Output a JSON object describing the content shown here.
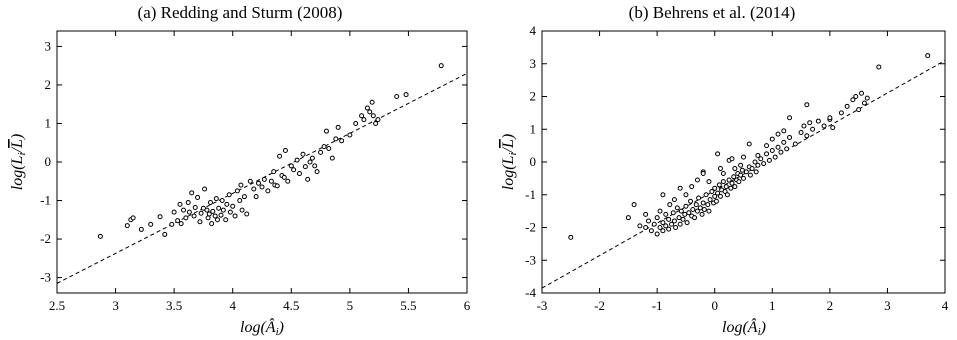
{
  "chart_data": [
    {
      "type": "scatter",
      "title": "(a) Redding and Sturm (2008)",
      "xlabel": "log(Â_i)",
      "ylabel": "log(L_i/L̄)",
      "xlim": [
        2.5,
        6
      ],
      "ylim": [
        -3.4,
        3.4
      ],
      "xticks": [
        "2.5",
        "3",
        "3.5",
        "4",
        "4.5",
        "5",
        "5.5",
        "6"
      ],
      "yticks": [
        "-3",
        "-2",
        "-1",
        "0",
        "1",
        "2",
        "3"
      ],
      "grid": false,
      "legend": "none",
      "fit_line": {
        "x": [
          2.5,
          6
        ],
        "y": [
          -3.15,
          2.3
        ]
      },
      "series": [
        {
          "points": [
            [
              2.87,
              -1.93
            ],
            [
              3.1,
              -1.65
            ],
            [
              3.13,
              -1.5
            ],
            [
              3.15,
              -1.45
            ],
            [
              3.22,
              -1.75
            ],
            [
              3.3,
              -1.62
            ],
            [
              3.38,
              -1.42
            ],
            [
              3.42,
              -1.88
            ],
            [
              3.48,
              -1.62
            ],
            [
              3.5,
              -1.3
            ],
            [
              3.53,
              -1.52
            ],
            [
              3.55,
              -1.1
            ],
            [
              3.56,
              -1.6
            ],
            [
              3.58,
              -1.25
            ],
            [
              3.6,
              -1.45
            ],
            [
              3.62,
              -1.05
            ],
            [
              3.63,
              -1.3
            ],
            [
              3.65,
              -0.8
            ],
            [
              3.67,
              -1.4
            ],
            [
              3.68,
              -1.18
            ],
            [
              3.7,
              -0.92
            ],
            [
              3.72,
              -1.55
            ],
            [
              3.73,
              -1.33
            ],
            [
              3.75,
              -1.2
            ],
            [
              3.76,
              -0.7
            ],
            [
              3.78,
              -1.25
            ],
            [
              3.79,
              -1.45
            ],
            [
              3.8,
              -1.35
            ],
            [
              3.81,
              -1.05
            ],
            [
              3.82,
              -1.6
            ],
            [
              3.83,
              -1.28
            ],
            [
              3.85,
              -1.4
            ],
            [
              3.86,
              -0.95
            ],
            [
              3.87,
              -1.5
            ],
            [
              3.88,
              -1.2
            ],
            [
              3.9,
              -1.38
            ],
            [
              3.91,
              -1.0
            ],
            [
              3.92,
              -1.25
            ],
            [
              3.94,
              -1.5
            ],
            [
              3.95,
              -1.1
            ],
            [
              3.97,
              -0.85
            ],
            [
              3.98,
              -1.3
            ],
            [
              4.0,
              -1.15
            ],
            [
              4.02,
              -1.4
            ],
            [
              4.04,
              -0.75
            ],
            [
              4.06,
              -1.0
            ],
            [
              4.07,
              -0.6
            ],
            [
              4.08,
              -1.25
            ],
            [
              4.1,
              -0.9
            ],
            [
              4.12,
              -1.35
            ],
            [
              4.15,
              -0.5
            ],
            [
              4.18,
              -0.7
            ],
            [
              4.2,
              -0.9
            ],
            [
              4.22,
              -0.55
            ],
            [
              4.25,
              -0.65
            ],
            [
              4.27,
              -0.45
            ],
            [
              4.3,
              -0.75
            ],
            [
              4.33,
              -0.5
            ],
            [
              4.35,
              -0.25
            ],
            [
              4.36,
              -0.6
            ],
            [
              4.38,
              -0.62
            ],
            [
              4.4,
              0.15
            ],
            [
              4.42,
              -0.35
            ],
            [
              4.44,
              -0.4
            ],
            [
              4.45,
              0.3
            ],
            [
              4.47,
              -0.5
            ],
            [
              4.5,
              -0.1
            ],
            [
              4.52,
              -0.2
            ],
            [
              4.55,
              0.05
            ],
            [
              4.57,
              -0.3
            ],
            [
              4.6,
              0.2
            ],
            [
              4.62,
              -0.12
            ],
            [
              4.64,
              -0.45
            ],
            [
              4.66,
              0.0
            ],
            [
              4.68,
              0.1
            ],
            [
              4.7,
              -0.1
            ],
            [
              4.72,
              -0.25
            ],
            [
              4.75,
              0.25
            ],
            [
              4.78,
              0.4
            ],
            [
              4.8,
              0.8
            ],
            [
              4.82,
              0.35
            ],
            [
              4.85,
              0.1
            ],
            [
              4.88,
              0.6
            ],
            [
              4.9,
              0.9
            ],
            [
              4.93,
              0.55
            ],
            [
              5.0,
              0.7
            ],
            [
              5.05,
              1.0
            ],
            [
              5.1,
              1.2
            ],
            [
              5.12,
              1.1
            ],
            [
              5.15,
              1.4
            ],
            [
              5.17,
              1.3
            ],
            [
              5.19,
              1.55
            ],
            [
              5.2,
              1.2
            ],
            [
              5.22,
              1.0
            ],
            [
              5.24,
              1.1
            ],
            [
              5.4,
              1.7
            ],
            [
              5.48,
              1.75
            ],
            [
              5.78,
              2.5
            ]
          ]
        }
      ]
    },
    {
      "type": "scatter",
      "title": "(b) Behrens et al. (2014)",
      "xlabel": "log(Â_i)",
      "ylabel": "log(L_i/L̄)",
      "xlim": [
        -3,
        4
      ],
      "ylim": [
        -4,
        4
      ],
      "xticks": [
        "-3",
        "-2",
        "-1",
        "0",
        "1",
        "2",
        "3",
        "4"
      ],
      "yticks": [
        "-4",
        "-3",
        "-2",
        "-1",
        "0",
        "1",
        "2",
        "3",
        "4"
      ],
      "grid": false,
      "legend": "none",
      "fit_line": {
        "x": [
          -3,
          4
        ],
        "y": [
          -3.85,
          3.1
        ]
      },
      "series": [
        {
          "points": [
            [
              -2.5,
              -2.3
            ],
            [
              -1.5,
              -1.7
            ],
            [
              -1.2,
              -2.0
            ],
            [
              -1.15,
              -1.8
            ],
            [
              -1.1,
              -2.1
            ],
            [
              -1.05,
              -1.9
            ],
            [
              -1.0,
              -2.2
            ],
            [
              -1.0,
              -1.7
            ],
            [
              -0.95,
              -2.0
            ],
            [
              -0.95,
              -1.5
            ],
            [
              -0.9,
              -1.85
            ],
            [
              -0.9,
              -2.1
            ],
            [
              -0.85,
              -1.6
            ],
            [
              -0.85,
              -1.95
            ],
            [
              -0.8,
              -1.75
            ],
            [
              -0.8,
              -2.05
            ],
            [
              -0.78,
              -1.3
            ],
            [
              -0.75,
              -1.9
            ],
            [
              -0.72,
              -1.55
            ],
            [
              -0.7,
              -1.8
            ],
            [
              -0.68,
              -2.0
            ],
            [
              -0.65,
              -1.4
            ],
            [
              -0.62,
              -1.7
            ],
            [
              -0.6,
              -1.9
            ],
            [
              -0.58,
              -1.5
            ],
            [
              -0.55,
              -1.75
            ],
            [
              -0.52,
              -1.6
            ],
            [
              -0.5,
              -1.35
            ],
            [
              -0.48,
              -1.85
            ],
            [
              -0.45,
              -1.55
            ],
            [
              -0.42,
              -1.2
            ],
            [
              -0.4,
              -1.65
            ],
            [
              -0.38,
              -1.45
            ],
            [
              -0.35,
              -1.7
            ],
            [
              -0.32,
              -1.3
            ],
            [
              -0.3,
              -1.5
            ],
            [
              -0.28,
              -1.1
            ],
            [
              -0.25,
              -1.4
            ],
            [
              -0.22,
              -1.6
            ],
            [
              -0.2,
              -1.25
            ],
            [
              -0.18,
              -1.45
            ],
            [
              -0.15,
              -1.0
            ],
            [
              -0.12,
              -1.3
            ],
            [
              -0.1,
              -1.5
            ],
            [
              -0.08,
              -1.15
            ],
            [
              -0.05,
              -0.9
            ],
            [
              -0.02,
              -1.25
            ],
            [
              0.0,
              -1.05
            ],
            [
              0.0,
              -0.8
            ],
            [
              0.03,
              -1.2
            ],
            [
              0.05,
              -0.95
            ],
            [
              0.08,
              -0.7
            ],
            [
              0.1,
              -1.05
            ],
            [
              0.12,
              -0.85
            ],
            [
              0.15,
              -0.6
            ],
            [
              0.18,
              -0.9
            ],
            [
              0.2,
              -0.75
            ],
            [
              0.22,
              -1.0
            ],
            [
              0.25,
              -0.55
            ],
            [
              0.28,
              -0.8
            ],
            [
              0.3,
              -0.65
            ],
            [
              0.33,
              -0.45
            ],
            [
              0.35,
              -0.75
            ],
            [
              0.38,
              -0.55
            ],
            [
              0.4,
              -0.35
            ],
            [
              0.42,
              -0.6
            ],
            [
              0.45,
              -0.4
            ],
            [
              0.48,
              -0.25
            ],
            [
              0.5,
              -0.5
            ],
            [
              0.55,
              -0.3
            ],
            [
              0.6,
              -0.15
            ],
            [
              0.62,
              -0.4
            ],
            [
              0.65,
              -0.2
            ],
            [
              0.7,
              0.0
            ],
            [
              0.72,
              -0.3
            ],
            [
              0.75,
              -0.1
            ],
            [
              0.8,
              0.1
            ],
            [
              0.85,
              -0.05
            ],
            [
              0.9,
              0.25
            ],
            [
              0.95,
              0.05
            ],
            [
              1.0,
              0.35
            ],
            [
              1.05,
              0.15
            ],
            [
              1.1,
              0.45
            ],
            [
              1.15,
              0.3
            ],
            [
              1.2,
              0.6
            ],
            [
              1.25,
              0.4
            ],
            [
              1.3,
              0.75
            ],
            [
              1.4,
              0.55
            ],
            [
              1.5,
              0.9
            ],
            [
              1.55,
              1.1
            ],
            [
              1.6,
              0.8
            ],
            [
              1.65,
              1.2
            ],
            [
              1.7,
              1.0
            ],
            [
              1.8,
              1.25
            ],
            [
              1.9,
              1.1
            ],
            [
              2.0,
              1.3
            ],
            [
              2.05,
              1.05
            ],
            [
              2.2,
              1.5
            ],
            [
              2.3,
              1.7
            ],
            [
              2.4,
              1.9
            ],
            [
              2.45,
              2.0
            ],
            [
              2.5,
              1.6
            ],
            [
              2.55,
              2.1
            ],
            [
              2.6,
              1.8
            ],
            [
              2.65,
              1.95
            ],
            [
              2.85,
              2.9
            ],
            [
              3.7,
              3.25
            ],
            [
              0.05,
              0.25
            ],
            [
              0.25,
              0.05
            ],
            [
              0.3,
              0.1
            ],
            [
              -0.2,
              -0.3
            ],
            [
              0.1,
              -0.2
            ],
            [
              -0.9,
              -1.0
            ],
            [
              -0.6,
              -0.8
            ],
            [
              -0.3,
              -0.55
            ],
            [
              -1.4,
              -1.3
            ],
            [
              -1.2,
              -1.6
            ],
            [
              -0.4,
              -0.75
            ],
            [
              0.6,
              0.55
            ],
            [
              0.9,
              0.5
            ],
            [
              1.3,
              1.35
            ],
            [
              1.6,
              1.75
            ],
            [
              2.0,
              1.35
            ],
            [
              1.1,
              0.85
            ],
            [
              0.5,
              0.15
            ],
            [
              -0.7,
              -1.15
            ],
            [
              -1.3,
              -1.95
            ],
            [
              -0.2,
              -0.35
            ],
            [
              0.15,
              -0.35
            ],
            [
              0.45,
              -0.1
            ],
            [
              1.0,
              0.7
            ],
            [
              -0.5,
              -1.0
            ],
            [
              -0.1,
              -0.6
            ],
            [
              0.35,
              -0.2
            ],
            [
              0.75,
              0.2
            ],
            [
              1.2,
              0.95
            ]
          ]
        }
      ]
    }
  ]
}
